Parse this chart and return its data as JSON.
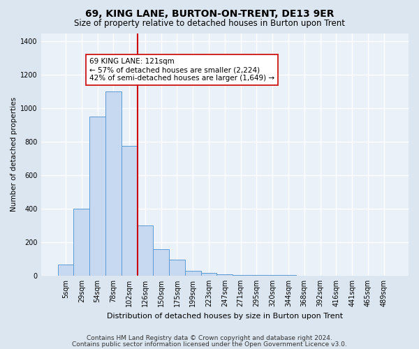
{
  "title": "69, KING LANE, BURTON-ON-TRENT, DE13 9ER",
  "subtitle": "Size of property relative to detached houses in Burton upon Trent",
  "xlabel": "Distribution of detached houses by size in Burton upon Trent",
  "ylabel": "Number of detached properties",
  "footnote1": "Contains HM Land Registry data © Crown copyright and database right 2024.",
  "footnote2": "Contains public sector information licensed under the Open Government Licence v3.0.",
  "bar_labels": [
    "5sqm",
    "29sqm",
    "54sqm",
    "78sqm",
    "102sqm",
    "126sqm",
    "150sqm",
    "175sqm",
    "199sqm",
    "223sqm",
    "247sqm",
    "271sqm",
    "295sqm",
    "320sqm",
    "344sqm",
    "368sqm",
    "392sqm",
    "416sqm",
    "441sqm",
    "465sqm",
    "489sqm"
  ],
  "bar_heights": [
    65,
    400,
    950,
    1100,
    775,
    300,
    160,
    95,
    30,
    15,
    10,
    5,
    3,
    2,
    2,
    1,
    1,
    1,
    1,
    1,
    1
  ],
  "bar_color": "#c6d9f1",
  "bar_edge_color": "#5b9bd5",
  "vline_index": 4.5,
  "vline_color": "#cc0000",
  "annotation_text": "69 KING LANE: 121sqm\n← 57% of detached houses are smaller (2,224)\n42% of semi-detached houses are larger (1,649) →",
  "annotation_box_color": "#ffffff",
  "annotation_border_color": "#cc0000",
  "ylim": [
    0,
    1450
  ],
  "yticks": [
    0,
    200,
    400,
    600,
    800,
    1000,
    1200,
    1400
  ],
  "bg_color": "#dce6f0",
  "plot_bg_color": "#eaf1f8",
  "grid_color": "#ffffff",
  "title_fontsize": 10,
  "subtitle_fontsize": 8.5,
  "ylabel_fontsize": 7.5,
  "xlabel_fontsize": 8,
  "tick_fontsize": 7,
  "annot_fontsize": 7.5,
  "footnote_fontsize": 6.5
}
